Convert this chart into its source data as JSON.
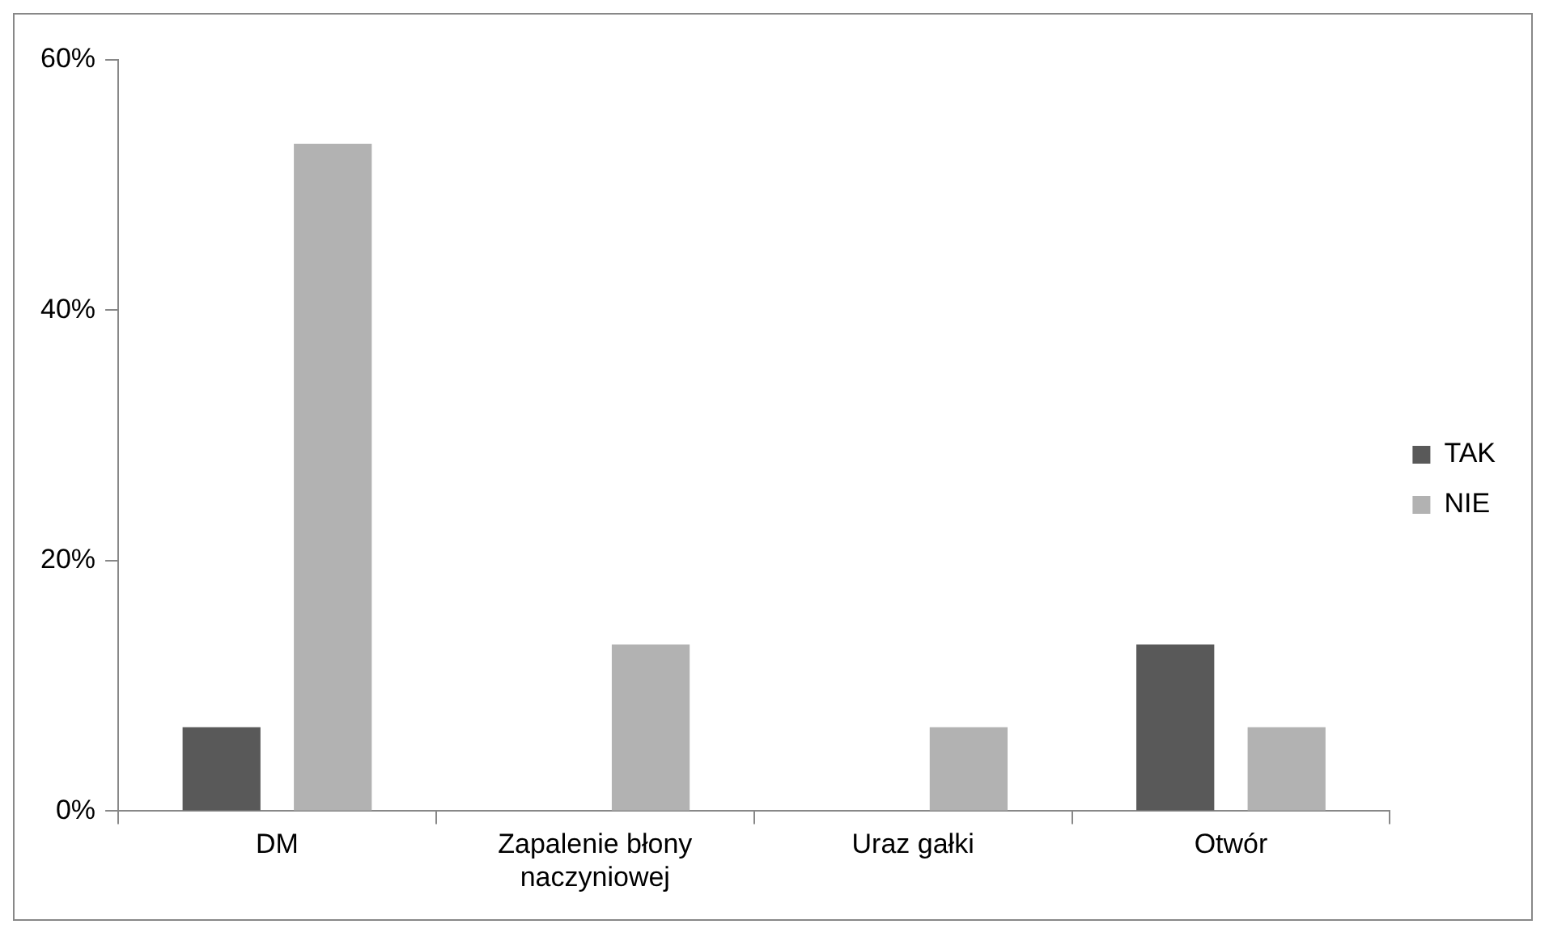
{
  "chart_data": {
    "type": "bar",
    "categories": [
      "DM",
      "Zapalenie błony naczyniowej",
      "Uraz gałki",
      "Otwór"
    ],
    "series": [
      {
        "name": "TAK",
        "color": "#595959",
        "values": [
          6.7,
          0,
          0,
          13.3
        ]
      },
      {
        "name": "NIE",
        "color": "#b2b2b2",
        "values": [
          53.3,
          13.3,
          6.7,
          6.7
        ]
      }
    ],
    "ylim": [
      0,
      60
    ],
    "yticks": [
      {
        "value": 0,
        "label": "0%"
      },
      {
        "value": 20,
        "label": "20%"
      },
      {
        "value": 40,
        "label": "40%"
      },
      {
        "value": 60,
        "label": "60%"
      }
    ],
    "grid": false,
    "legend": "right"
  }
}
